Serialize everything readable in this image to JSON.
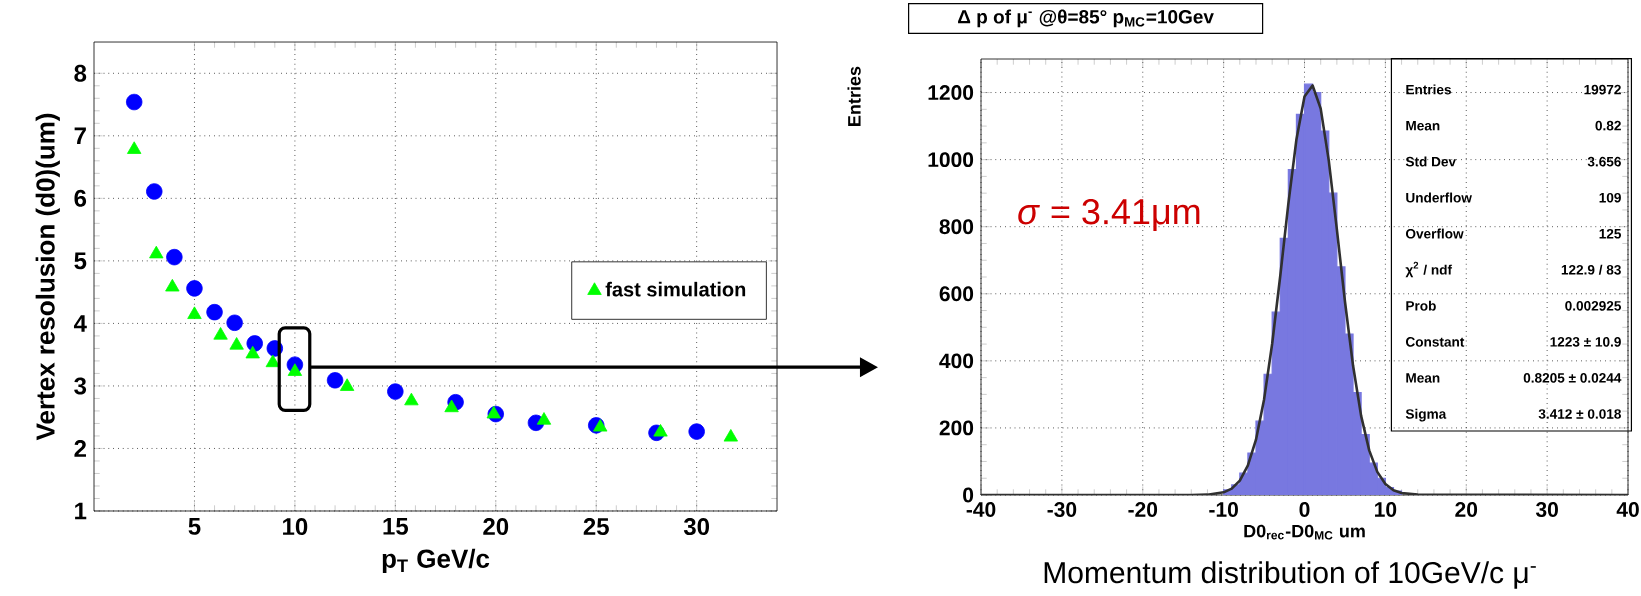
{
  "chart_data": [
    {
      "type": "scatter",
      "xlabel": "p$_{T}$ GeV/c",
      "ylabel": "Vertex resolusion (d0)(um)",
      "xlim": [
        0,
        34
      ],
      "xticks": [
        5,
        10,
        15,
        20,
        25,
        30
      ],
      "ylim": [
        1,
        8.5
      ],
      "yticks": [
        1,
        2,
        3,
        4,
        5,
        6,
        7,
        8
      ],
      "grid": true,
      "legend": "right",
      "series": [
        {
          "color": "#0000ff",
          "marker": "circle",
          "x": [
            2,
            3,
            4,
            5,
            6,
            7,
            8,
            9,
            10,
            12,
            15,
            18,
            20,
            22,
            25,
            28,
            30
          ],
          "values": [
            7.54,
            6.11,
            5.06,
            4.56,
            4.18,
            4.01,
            3.68,
            3.6,
            3.34,
            3.09,
            2.91,
            2.74,
            2.55,
            2.41,
            2.37,
            2.25,
            2.27
          ]
        },
        {
          "name": "fast simulation",
          "color": "#00ff00",
          "marker": "triangle",
          "x": [
            2,
            3.1,
            3.9,
            5,
            6.3,
            7.1,
            7.9,
            8.9,
            10,
            12.6,
            15.8,
            17.8,
            19.9,
            22.4,
            25.2,
            28.2,
            31.7
          ],
          "values": [
            6.78,
            5.11,
            4.58,
            4.14,
            3.81,
            3.65,
            3.51,
            3.37,
            3.23,
            2.99,
            2.76,
            2.65,
            2.55,
            2.45,
            2.34,
            2.26,
            2.18
          ]
        }
      ]
    },
    {
      "type": "histogram",
      "title": "Δ p of μ$^{-}$ @θ=85° p$_{MC}$=10Gev",
      "xlabel": "D0$_{rec}$-D0$_{MC}$ um",
      "ylabel": "Entries",
      "xlim": [
        -40,
        40
      ],
      "xticks": [
        -40,
        -30,
        -20,
        -10,
        0,
        10,
        20,
        30,
        40
      ],
      "ylim": [
        0,
        1300
      ],
      "yticks": [
        0,
        200,
        400,
        600,
        800,
        1000,
        1200
      ],
      "grid": true,
      "series": [
        {
          "type": "histogram",
          "color": "#7878e0",
          "bins": [
            -10,
            -9,
            -8,
            -7,
            -6,
            -5,
            -4,
            -3,
            -2,
            -1,
            0,
            1,
            2,
            3,
            4,
            5,
            6,
            7,
            8,
            9,
            10,
            11,
            12
          ],
          "values": [
            15,
            30,
            65,
            125,
            220,
            360,
            545,
            765,
            970,
            1135,
            1225,
            1200,
            1085,
            900,
            680,
            480,
            305,
            180,
            95,
            50,
            22,
            12
          ]
        },
        {
          "type": "line",
          "color": "#303030",
          "x": [
            -40,
            -14,
            -12,
            -10,
            -9,
            -8,
            -7,
            -6,
            -5,
            -4,
            -3,
            -2,
            -1,
            0,
            1,
            2,
            3,
            4,
            5,
            6,
            7,
            8,
            9,
            10,
            11,
            12,
            14,
            40
          ],
          "values": [
            0,
            0,
            1,
            8,
            19,
            43,
            88,
            165,
            285,
            451,
            653,
            868,
            1060,
            1188,
            1221,
            1152,
            997,
            792,
            577,
            386,
            236,
            133,
            69,
            33,
            14,
            6,
            1,
            0
          ]
        }
      ],
      "annotations": [
        "*σ* = 3.41μm",
        "Momentum distribution of 10GeV/c μ$^{-}$",
        "Entries",
        "19972",
        "Mean",
        "0.82",
        "Std Dev",
        "3.656",
        "Underflow",
        "109",
        "Overflow",
        "125",
        "χ$^{2}$ / ndf",
        "122.9 / 83",
        "Prob",
        "0.002925",
        "Constant",
        "1223 ± 10.9",
        "Mean",
        "0.8205 ± 0.0244",
        "Sigma",
        "3.412 ± 0.018"
      ]
    }
  ]
}
